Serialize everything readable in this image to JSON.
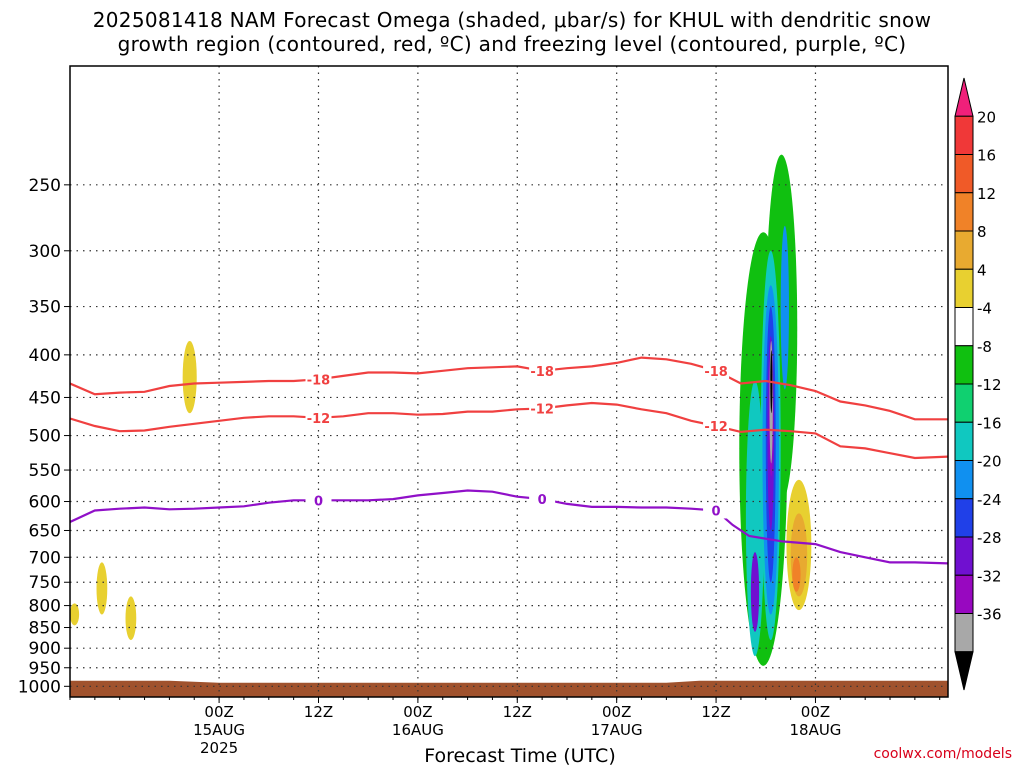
{
  "title": {
    "line1": "2025081418 NAM Forecast Omega (shaded, μbar/s) for KHUL with dendritic snow",
    "line2": "growth region (contoured, red, ºC) and freezing level (contoured, purple, ºC)"
  },
  "credit": "coolwx.com/models",
  "chart_data": {
    "type": "heatmap",
    "xlabel": "Forecast Time (UTC)",
    "ylabel": "",
    "x_units": "forecast hour from 2025081418",
    "xlim": [
      -12,
      94
    ],
    "y_scale": "log",
    "ylim": [
      1030,
      180
    ],
    "y_ticks": [
      250,
      300,
      350,
      400,
      450,
      500,
      550,
      600,
      650,
      700,
      750,
      800,
      850,
      900,
      950,
      1000
    ],
    "x_ticks": [
      {
        "x": 6,
        "label": [
          "00Z",
          "15AUG",
          "2025"
        ]
      },
      {
        "x": 18,
        "label": [
          "12Z"
        ]
      },
      {
        "x": 30,
        "label": [
          "00Z",
          "16AUG"
        ]
      },
      {
        "x": 42,
        "label": [
          "12Z"
        ]
      },
      {
        "x": 54,
        "label": [
          "00Z",
          "17AUG"
        ]
      },
      {
        "x": 66,
        "label": [
          "12Z"
        ]
      },
      {
        "x": 78,
        "label": [
          "00Z",
          "18AUG"
        ]
      }
    ],
    "grid": true,
    "colorbar": {
      "ticks": [
        "20",
        "16",
        "12",
        "8",
        "4",
        "-4",
        "-8",
        "-12",
        "-16",
        "-20",
        "-24",
        "-28",
        "-32",
        "-36"
      ],
      "colors": [
        "#f0207a",
        "#f03838",
        "#f05a28",
        "#f08228",
        "#e8aa30",
        "#e8d030",
        "#ffffff",
        "#10c010",
        "#10d070",
        "#10c8c0",
        "#1090f0",
        "#2040e8",
        "#7010d0",
        "#9808c0",
        "#a8a8a8",
        "#000000"
      ]
    },
    "contours": [
      {
        "label": "-18",
        "color": "#f04040",
        "points": [
          [
            -12,
            433
          ],
          [
            -9,
            446
          ],
          [
            -6,
            444
          ],
          [
            -3,
            443
          ],
          [
            0,
            436
          ],
          [
            3,
            433
          ],
          [
            6,
            432
          ],
          [
            9,
            431
          ],
          [
            12,
            430
          ],
          [
            15,
            430
          ],
          [
            18,
            428
          ],
          [
            21,
            424
          ],
          [
            24,
            420
          ],
          [
            27,
            420
          ],
          [
            30,
            421
          ],
          [
            33,
            418
          ],
          [
            36,
            415
          ],
          [
            39,
            414
          ],
          [
            42,
            413
          ],
          [
            45,
            418
          ],
          [
            48,
            415
          ],
          [
            51,
            413
          ],
          [
            54,
            409
          ],
          [
            57,
            403
          ],
          [
            60,
            405
          ],
          [
            63,
            410
          ],
          [
            66,
            418
          ],
          [
            69,
            433
          ],
          [
            72,
            430
          ],
          [
            75,
            435
          ],
          [
            78,
            442
          ],
          [
            81,
            455
          ],
          [
            84,
            460
          ],
          [
            87,
            467
          ],
          [
            90,
            478
          ],
          [
            94,
            478
          ]
        ]
      },
      {
        "label": "-12",
        "color": "#f04040",
        "points": [
          [
            -12,
            477
          ],
          [
            -9,
            487
          ],
          [
            -6,
            494
          ],
          [
            -3,
            493
          ],
          [
            0,
            488
          ],
          [
            3,
            484
          ],
          [
            6,
            480
          ],
          [
            9,
            476
          ],
          [
            12,
            474
          ],
          [
            15,
            474
          ],
          [
            18,
            476
          ],
          [
            21,
            474
          ],
          [
            24,
            470
          ],
          [
            27,
            470
          ],
          [
            30,
            472
          ],
          [
            33,
            471
          ],
          [
            36,
            468
          ],
          [
            39,
            468
          ],
          [
            42,
            465
          ],
          [
            45,
            464
          ],
          [
            48,
            460
          ],
          [
            51,
            457
          ],
          [
            54,
            459
          ],
          [
            57,
            465
          ],
          [
            60,
            470
          ],
          [
            63,
            480
          ],
          [
            66,
            487
          ],
          [
            69,
            495
          ],
          [
            72,
            492
          ],
          [
            75,
            494
          ],
          [
            78,
            497
          ],
          [
            81,
            515
          ],
          [
            84,
            518
          ],
          [
            87,
            525
          ],
          [
            90,
            532
          ],
          [
            94,
            530
          ]
        ]
      },
      {
        "label": "0",
        "color": "#9010c8",
        "points": [
          [
            -12,
            635
          ],
          [
            -9,
            615
          ],
          [
            -6,
            612
          ],
          [
            -3,
            610
          ],
          [
            0,
            613
          ],
          [
            3,
            612
          ],
          [
            6,
            610
          ],
          [
            9,
            608
          ],
          [
            12,
            602
          ],
          [
            15,
            598
          ],
          [
            18,
            598
          ],
          [
            21,
            598
          ],
          [
            24,
            598
          ],
          [
            27,
            596
          ],
          [
            30,
            590
          ],
          [
            33,
            586
          ],
          [
            36,
            582
          ],
          [
            39,
            584
          ],
          [
            42,
            592
          ],
          [
            45,
            596
          ],
          [
            48,
            604
          ],
          [
            51,
            609
          ],
          [
            54,
            609
          ],
          [
            57,
            610
          ],
          [
            60,
            610
          ],
          [
            63,
            612
          ],
          [
            66,
            615
          ],
          [
            68,
            640
          ],
          [
            70,
            660
          ],
          [
            72,
            665
          ],
          [
            74,
            670
          ],
          [
            78,
            675
          ],
          [
            81,
            690
          ],
          [
            84,
            700
          ],
          [
            87,
            710
          ],
          [
            90,
            710
          ],
          [
            94,
            712
          ]
        ]
      }
    ],
    "shaded_regions": [
      {
        "value": 4,
        "color": "#e8d030",
        "t": [
          -12.0,
          -10.9
        ],
        "p": [
          795,
          845
        ]
      },
      {
        "value": 4,
        "color": "#e8d030",
        "t": [
          -8.8,
          -7.5
        ],
        "p": [
          710,
          820
        ]
      },
      {
        "value": 4,
        "color": "#e8d030",
        "t": [
          -5.3,
          -4.0
        ],
        "p": [
          780,
          880
        ]
      },
      {
        "value": 4,
        "color": "#e8d030",
        "t": [
          1.6,
          3.3
        ],
        "p": [
          385,
          470
        ]
      },
      {
        "value": -8,
        "color": "#10c010",
        "t": [
          68.8,
          74.6
        ],
        "p": [
          285,
          945
        ]
      },
      {
        "value": -8,
        "color": "#10c010",
        "t": [
          72.0,
          75.8
        ],
        "p": [
          230,
          600
        ]
      },
      {
        "value": -12,
        "color": "#10c8c0",
        "t": [
          69.6,
          71.8
        ],
        "p": [
          430,
          920
        ]
      },
      {
        "value": -12,
        "color": "#10c8c0",
        "t": [
          71.4,
          73.8
        ],
        "p": [
          300,
          880
        ]
      },
      {
        "value": -16,
        "color": "#1090f0",
        "t": [
          71.6,
          73.6
        ],
        "p": [
          330,
          820
        ]
      },
      {
        "value": -16,
        "color": "#1090f0",
        "t": [
          73.8,
          74.8
        ],
        "p": [
          280,
          440
        ]
      },
      {
        "value": -20,
        "color": "#2040e8",
        "t": [
          72.0,
          73.2
        ],
        "p": [
          350,
          750
        ]
      },
      {
        "value": -24,
        "color": "#7010d0",
        "t": [
          72.2,
          73.0
        ],
        "p": [
          380,
          650
        ]
      },
      {
        "value": -24,
        "color": "#7010d0",
        "t": [
          70.2,
          71.2
        ],
        "p": [
          690,
          860
        ]
      },
      {
        "value": -28,
        "color": "#9808c0",
        "t": [
          72.4,
          72.9
        ],
        "p": [
          400,
          560
        ]
      },
      {
        "value": -32,
        "color": "#a8a8a8",
        "t": [
          72.45,
          72.85
        ],
        "p": [
          385,
          540
        ]
      },
      {
        "value": -36,
        "color": "#000000",
        "t": [
          72.55,
          72.8
        ],
        "p": [
          395,
          470
        ]
      },
      {
        "value": 4,
        "color": "#e8d030",
        "t": [
          74.5,
          77.5
        ],
        "p": [
          565,
          810
        ]
      },
      {
        "value": 8,
        "color": "#e8aa30",
        "t": [
          75.0,
          77.0
        ],
        "p": [
          620,
          780
        ]
      },
      {
        "value": 12,
        "color": "#f08228",
        "t": [
          75.2,
          76.2
        ],
        "p": [
          700,
          770
        ]
      }
    ],
    "terrain": {
      "color": "#a0522d",
      "top_hpa": [
        {
          "x": -12,
          "p": 985
        },
        {
          "x": 0,
          "p": 985
        },
        {
          "x": 6,
          "p": 990
        },
        {
          "x": 60,
          "p": 990
        },
        {
          "x": 64,
          "p": 985
        },
        {
          "x": 94,
          "p": 985
        }
      ]
    }
  }
}
